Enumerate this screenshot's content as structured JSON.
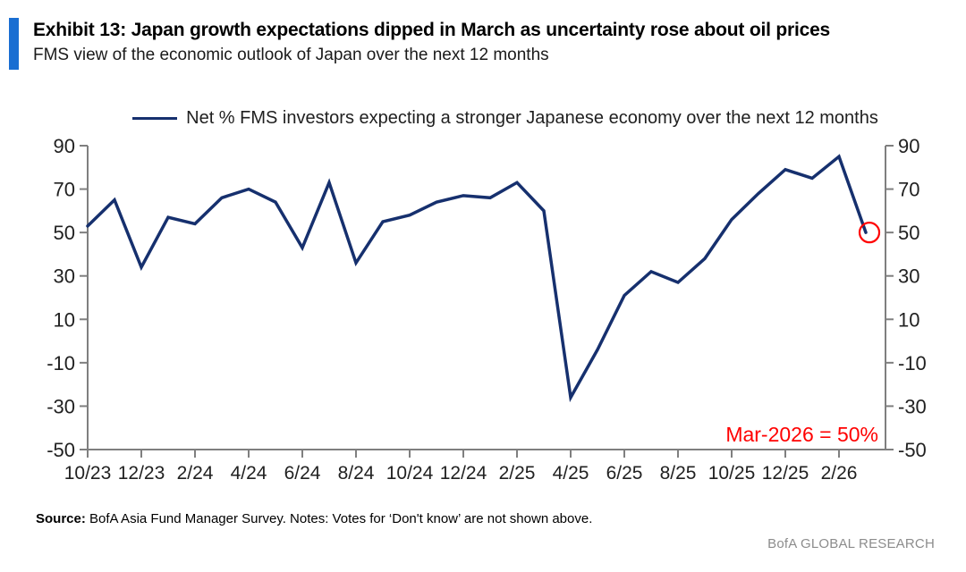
{
  "header": {
    "title": "Exhibit 13: Japan growth expectations dipped in March as uncertainty rose about oil prices",
    "subtitle": "FMS view of the economic outlook of Japan over the next 12 months"
  },
  "legend": {
    "label": "Net % FMS investors expecting a stronger Japanese economy over the next 12 months"
  },
  "annotation": {
    "text": "Mar-2026 = 50%"
  },
  "footer": {
    "source_label": "Source:",
    "source_text": " BofA Asia Fund Manager Survey. Notes: Votes for ‘Don't know’ are not shown above.",
    "brand": "BofA GLOBAL RESEARCH"
  },
  "colors": {
    "line": "#16306E",
    "accent_bar": "#196ED2",
    "axis": "#7F7F7F",
    "tick_label": "#212121",
    "annotation_red": "#FF0000",
    "brand_gray": "#8C8C8C"
  },
  "chart_data": {
    "type": "line",
    "title": "Exhibit 13: Japan growth expectations dipped in March as uncertainty rose about oil prices",
    "subtitle": "FMS view of the economic outlook of Japan over the next 12 months",
    "series_name": "Net % FMS investors expecting a stronger Japanese economy over the next 12 months",
    "legend_position": "top",
    "grid": false,
    "x": [
      "10/23",
      "11/23",
      "12/23",
      "1/24",
      "2/24",
      "3/24",
      "4/24",
      "5/24",
      "6/24",
      "7/24",
      "8/24",
      "9/24",
      "10/24",
      "11/24",
      "12/24",
      "1/25",
      "2/25",
      "3/25",
      "4/25",
      "5/25",
      "6/25",
      "7/25",
      "8/25",
      "9/25",
      "10/25",
      "11/25",
      "12/25",
      "1/26",
      "2/26",
      "3/26"
    ],
    "values": [
      53,
      65,
      34,
      57,
      54,
      66,
      70,
      64,
      43,
      73,
      36,
      55,
      58,
      64,
      67,
      66,
      73,
      60,
      -26,
      -4,
      21,
      32,
      27,
      38,
      56,
      68,
      79,
      75,
      85,
      50
    ],
    "x_tick_labels": [
      "10/23",
      "12/23",
      "2/24",
      "4/24",
      "6/24",
      "8/24",
      "10/24",
      "12/24",
      "2/25",
      "4/25",
      "6/25",
      "8/25",
      "10/25",
      "12/25",
      "2/26"
    ],
    "y_ticks": [
      90,
      70,
      50,
      30,
      10,
      -10,
      -30,
      -50
    ],
    "ylim": [
      -50,
      90
    ],
    "annotation": "Mar-2026 = 50%",
    "highlight_last_point": true,
    "last_point_label": "Mar-2026",
    "last_point_value": 50
  }
}
